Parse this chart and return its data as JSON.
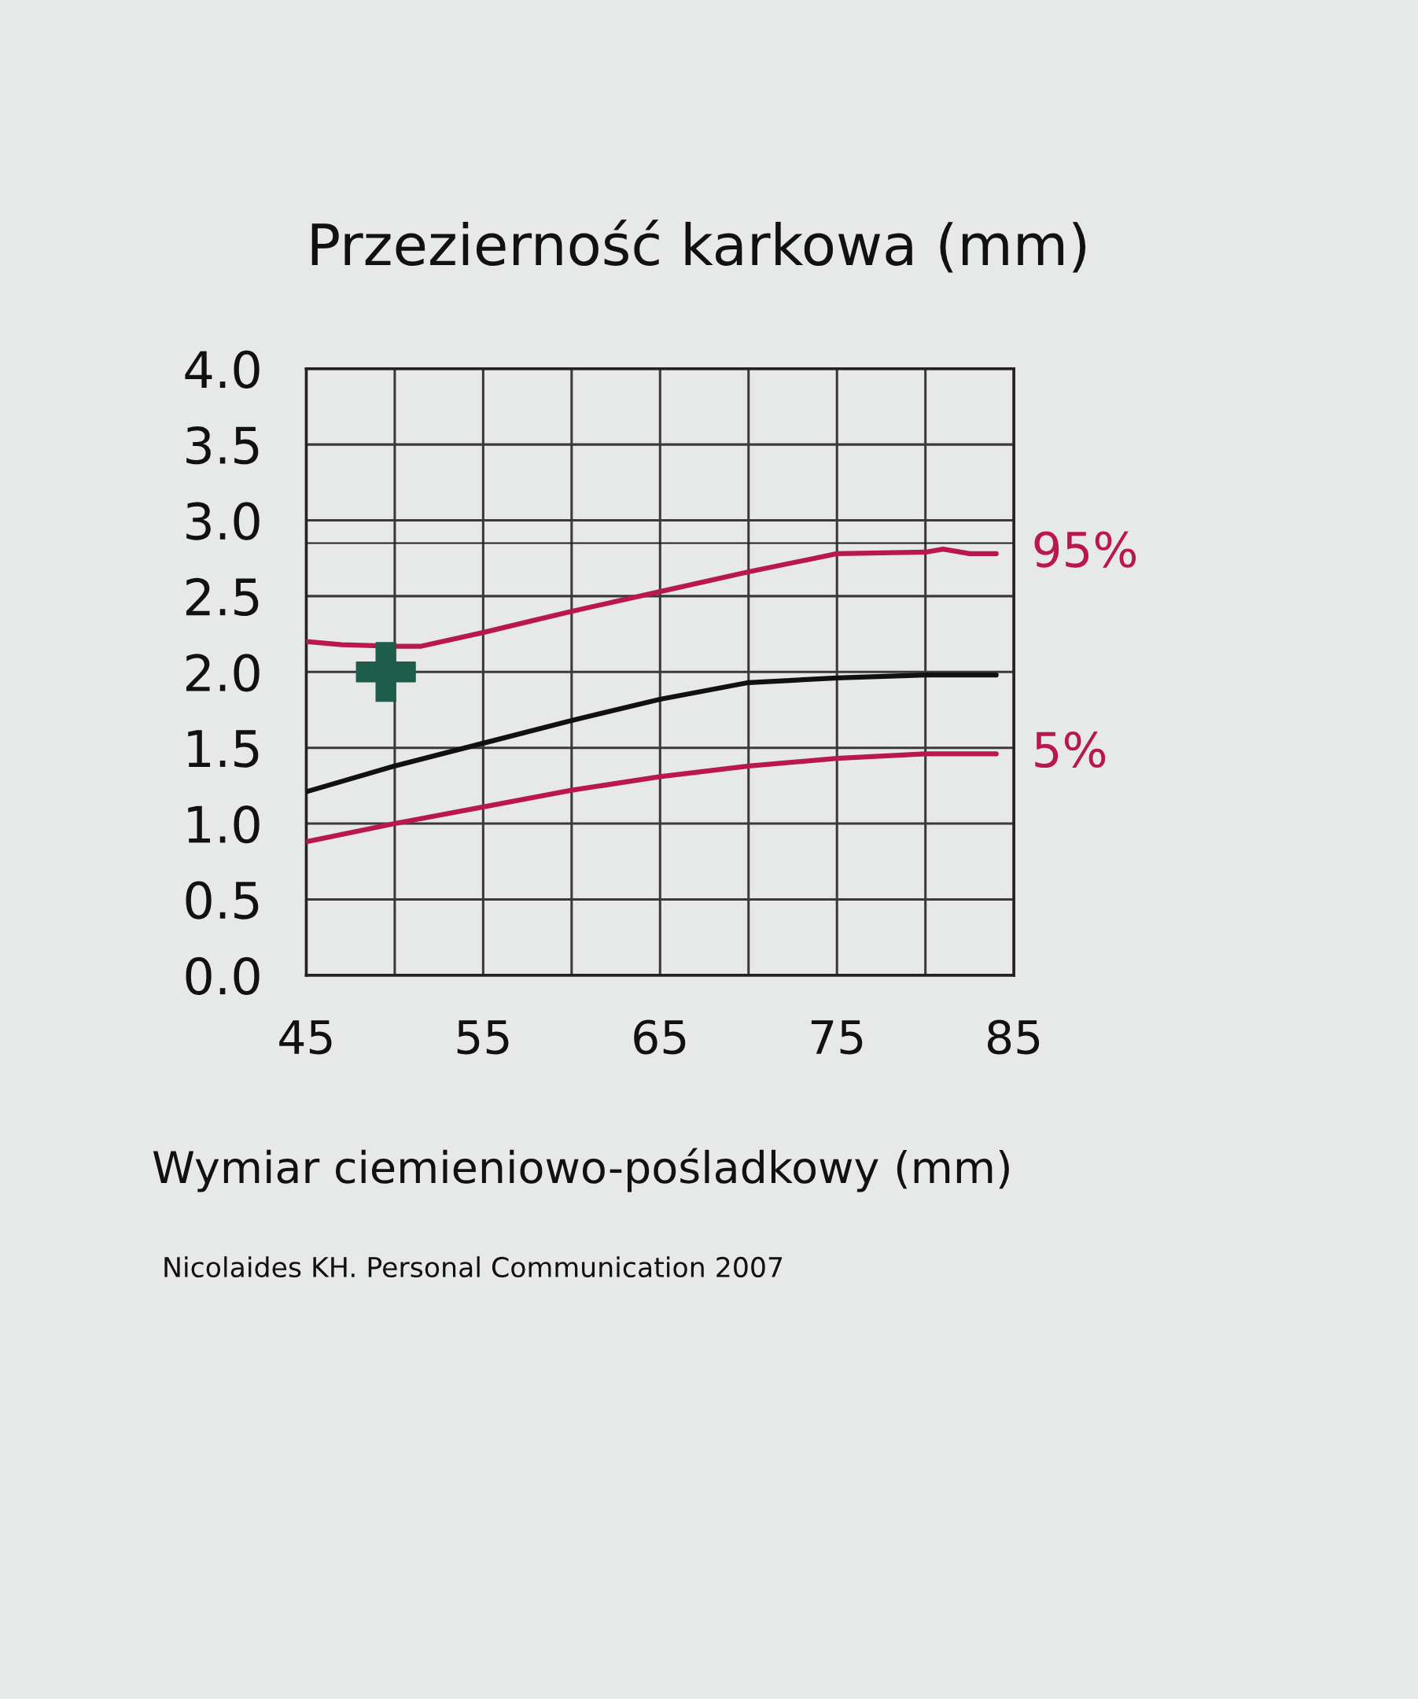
{
  "chart_data": {
    "type": "line",
    "title": "Przezierność karkowa (mm)",
    "xlabel": "Wymiar ciemieniowo-pośladkowy (mm)",
    "annotations": [
      "Nicolaides KH. Personal Communication 2007"
    ],
    "xlim": [
      45,
      85
    ],
    "xticks": [
      45,
      {
        "value": 50,
        "label": null
      },
      55,
      {
        "value": 60,
        "label": null
      },
      65,
      {
        "value": 70,
        "label": null
      },
      75,
      {
        "value": 80,
        "label": null
      },
      85
    ],
    "ylim": [
      0,
      4
    ],
    "yticks": [
      {
        "value": 0,
        "label": "0.0"
      },
      0.5,
      {
        "value": 1,
        "label": "1.0"
      },
      1.5,
      {
        "value": 2,
        "label": "2.0"
      },
      2.5,
      {
        "value": 3,
        "label": "3.0"
      },
      3.5,
      {
        "value": 4,
        "label": "4.0"
      }
    ],
    "grid": true,
    "ref_lines": [
      {
        "axis": "y",
        "value": 2.85,
        "color": "#222222"
      }
    ],
    "series": [
      {
        "name": "95%",
        "color": "#b8184c",
        "x": [
          45,
          47,
          50,
          51.5,
          55,
          57.5,
          60,
          65,
          70,
          75,
          80,
          81,
          82.5,
          84
        ],
        "values": [
          2.2,
          2.18,
          2.17,
          2.17,
          2.26,
          2.33,
          2.4,
          2.53,
          2.66,
          2.78,
          2.79,
          2.81,
          2.78,
          2.78
        ]
      },
      {
        "color": "#111111",
        "x": [
          45,
          50,
          55,
          60,
          65,
          70,
          75,
          80,
          84
        ],
        "values": [
          1.21,
          1.38,
          1.53,
          1.68,
          1.82,
          1.93,
          1.96,
          1.98,
          1.98
        ]
      },
      {
        "name": "5%",
        "color": "#b8184c",
        "x": [
          45,
          50,
          55,
          60,
          65,
          70,
          75,
          80,
          84
        ],
        "values": [
          0.88,
          1.0,
          1.11,
          1.22,
          1.31,
          1.38,
          1.43,
          1.46,
          1.46
        ]
      },
      {
        "type": "scatter",
        "color": "#1e5c4c",
        "marker": "cross",
        "x": [
          49.5
        ],
        "values": [
          2.0
        ]
      }
    ]
  }
}
